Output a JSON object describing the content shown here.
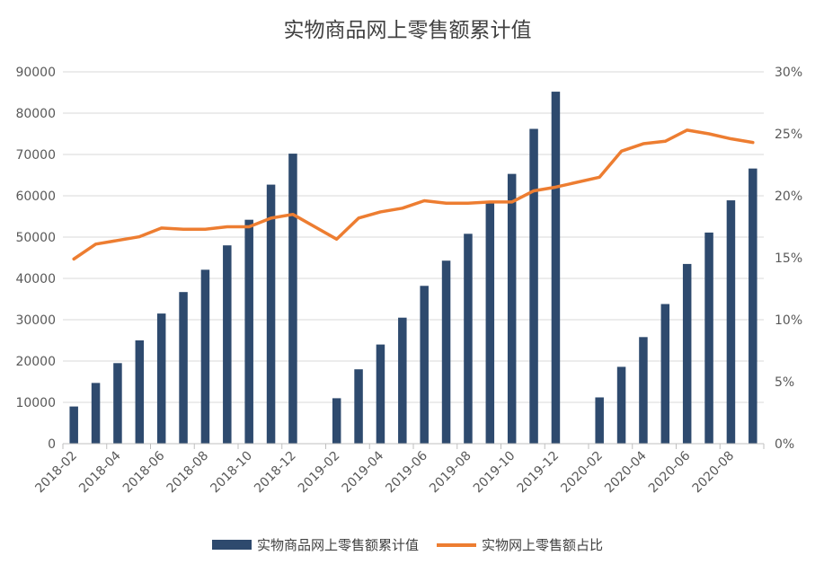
{
  "chart_data": {
    "type": "bar",
    "title": "实物商品网上零售额累计值",
    "xlabel": "",
    "ylabel": "",
    "ylim": [
      0,
      90000
    ],
    "y2lim": [
      0,
      0.3
    ],
    "y_ticks": [
      "0",
      "10000",
      "20000",
      "30000",
      "40000",
      "50000",
      "60000",
      "70000",
      "80000",
      "90000"
    ],
    "y2_ticks": [
      "0%",
      "5%",
      "10%",
      "15%",
      "20%",
      "25%",
      "30%"
    ],
    "x_tick_labels": [
      "2018-02",
      "2018-04",
      "2018-06",
      "2018-08",
      "2018-10",
      "2018-12",
      "2019-02",
      "2019-04",
      "2019-06",
      "2019-08",
      "2019-10",
      "2019-12",
      "2020-02",
      "2020-04",
      "2020-06",
      "2020-08"
    ],
    "categories": [
      "2018-02",
      "2018-03",
      "2018-04",
      "2018-05",
      "2018-06",
      "2018-07",
      "2018-08",
      "2018-09",
      "2018-10",
      "2018-11",
      "2018-12",
      "2019-01",
      "2019-02",
      "2019-03",
      "2019-04",
      "2019-05",
      "2019-06",
      "2019-07",
      "2019-08",
      "2019-09",
      "2019-10",
      "2019-11",
      "2019-12",
      "2020-01",
      "2020-02",
      "2020-03",
      "2020-04",
      "2020-05",
      "2020-06",
      "2020-07",
      "2020-08",
      "2020-09"
    ],
    "grid": true,
    "legend_position": "bottom",
    "series": [
      {
        "name": "实物商品网上零售额累计值",
        "type": "bar",
        "axis": "left",
        "color": "#2e4a6e",
        "values": [
          9000,
          14700,
          19500,
          25000,
          31500,
          36700,
          42100,
          48000,
          54200,
          62700,
          70200,
          null,
          11000,
          18000,
          24000,
          30500,
          38200,
          44300,
          50800,
          58300,
          65300,
          76200,
          85200,
          null,
          11200,
          18600,
          25800,
          33800,
          43500,
          51100,
          58900,
          66600
        ]
      },
      {
        "name": "实物网上零售额占比",
        "type": "line",
        "axis": "right",
        "color": "#ed7d31",
        "values": [
          0.149,
          0.161,
          0.164,
          0.167,
          0.174,
          0.173,
          0.173,
          0.175,
          0.175,
          0.182,
          0.185,
          null,
          0.165,
          0.182,
          0.187,
          0.19,
          0.196,
          0.194,
          0.194,
          0.195,
          0.195,
          0.204,
          0.207,
          null,
          0.215,
          0.236,
          0.242,
          0.244,
          0.253,
          0.25,
          0.246,
          0.243
        ]
      }
    ]
  }
}
